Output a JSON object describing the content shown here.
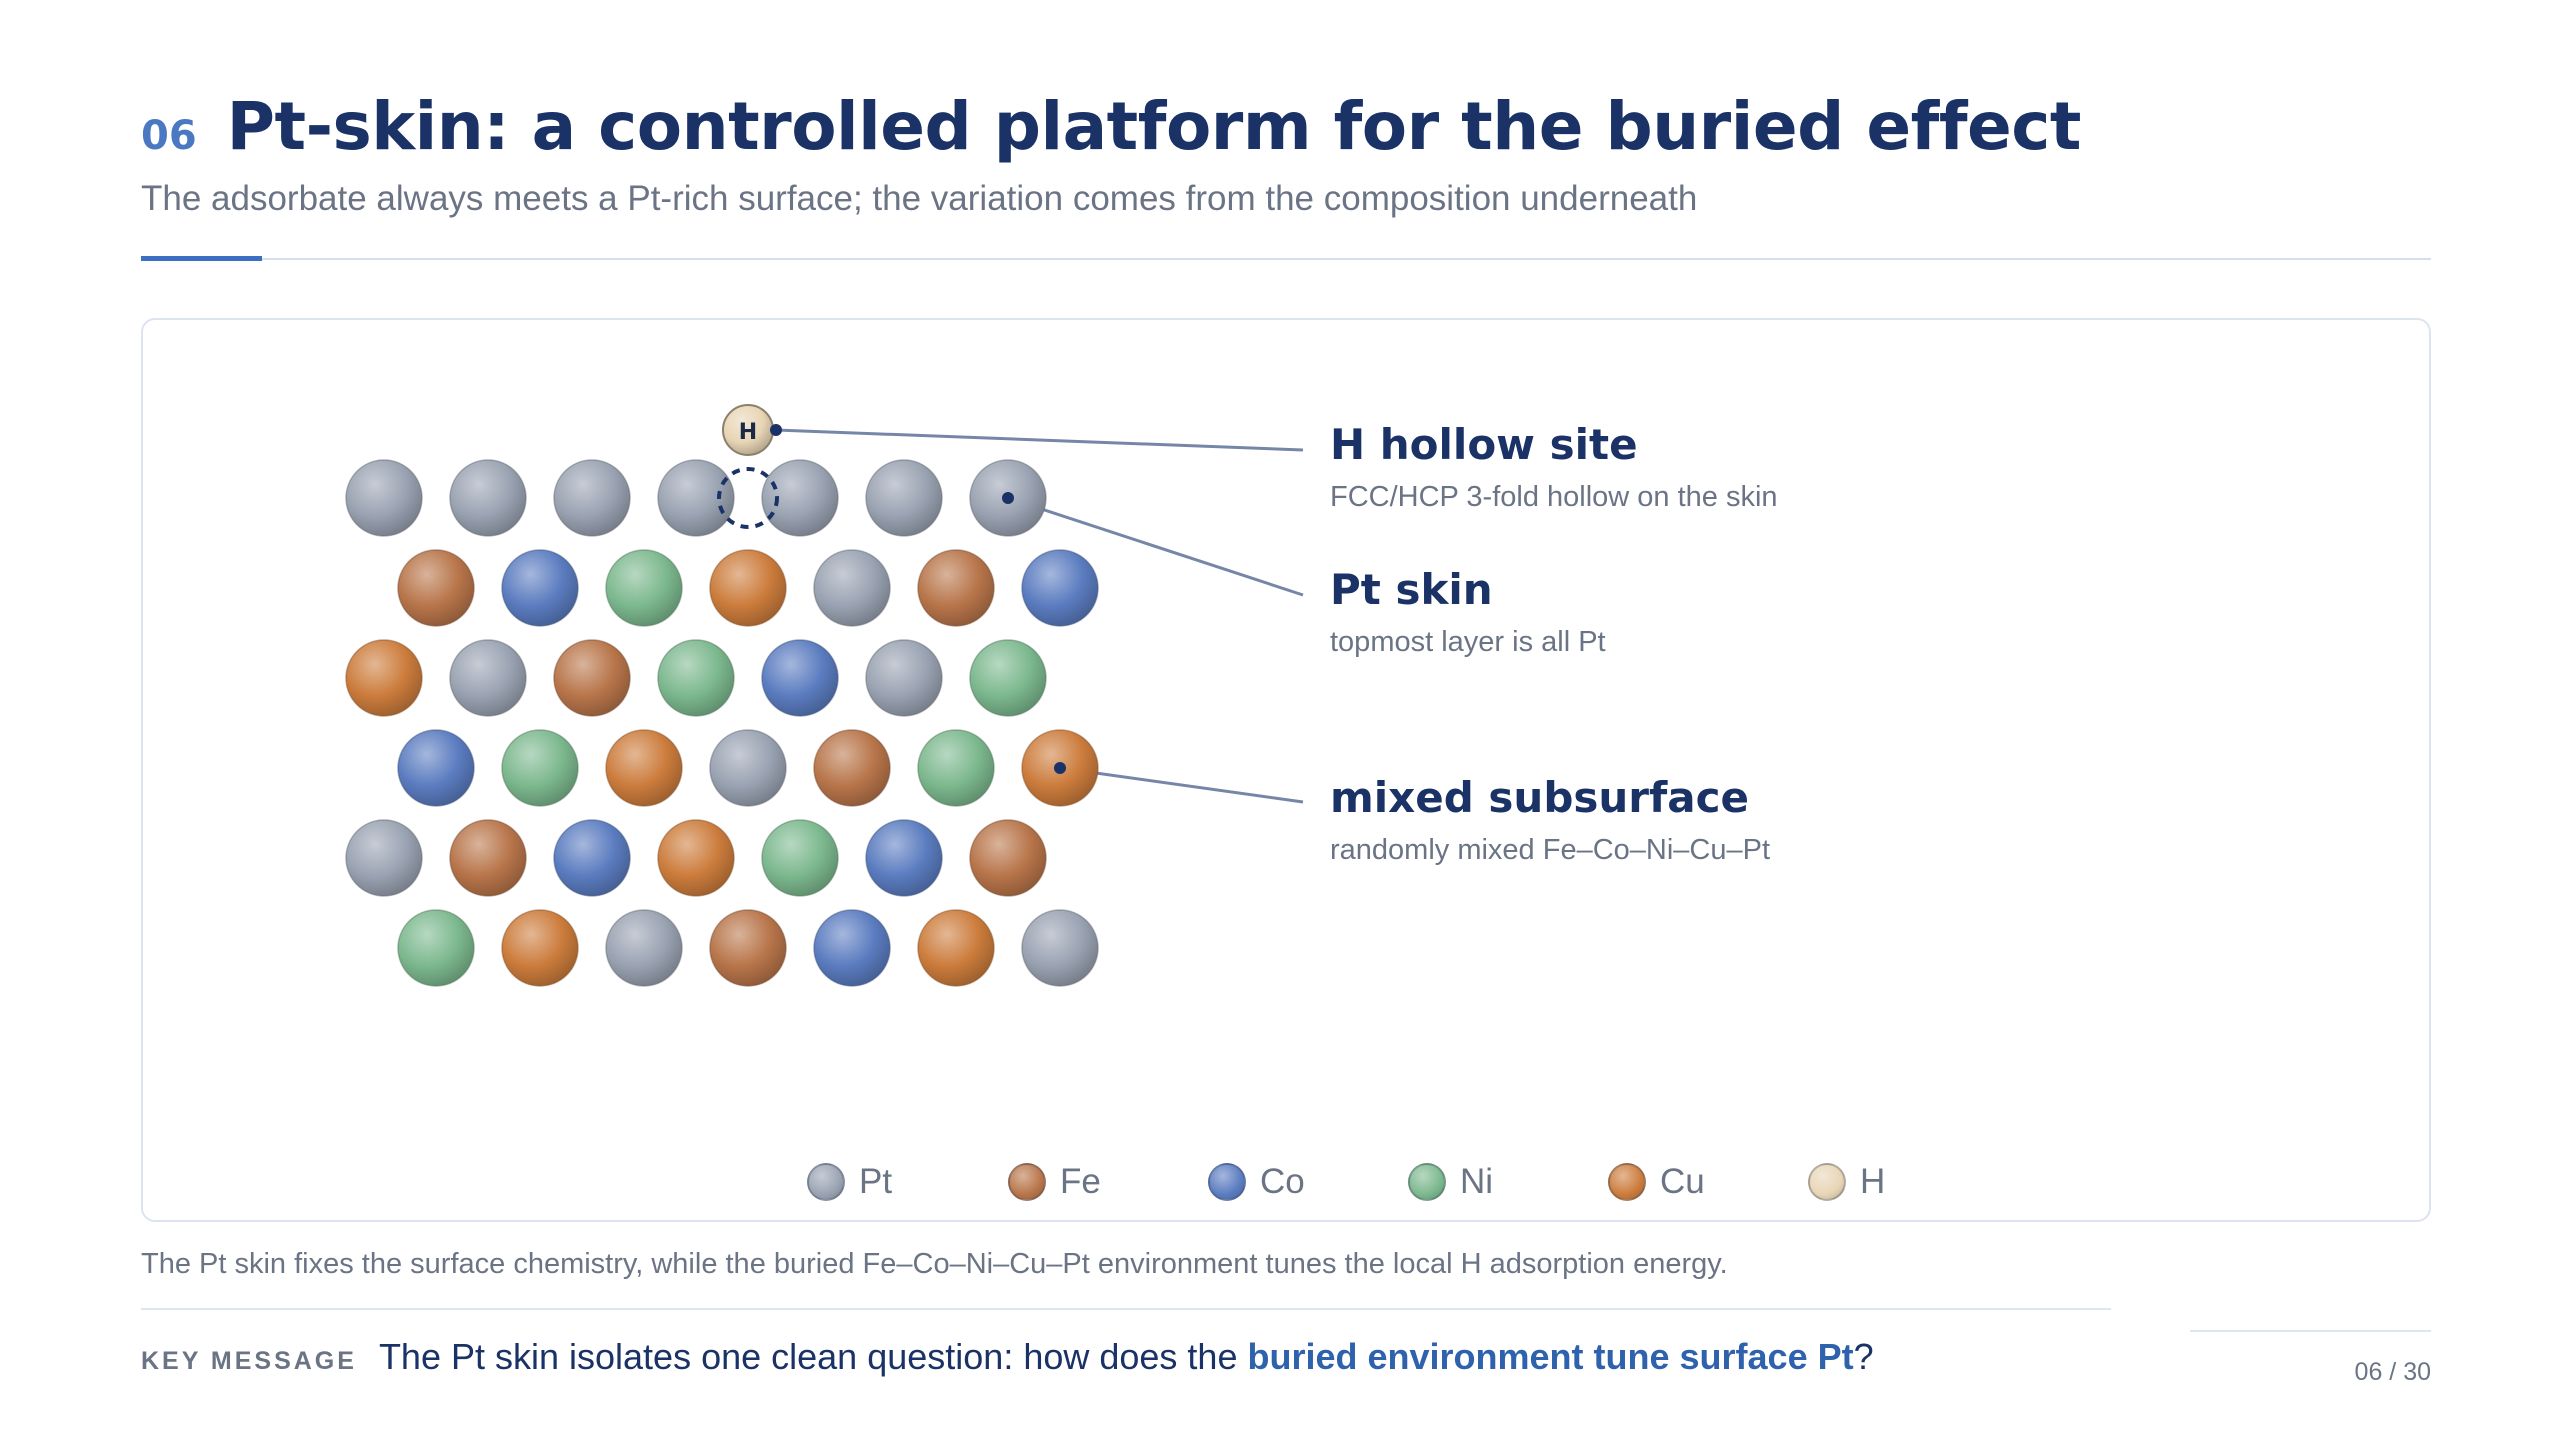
{
  "header": {
    "slide_number": "06",
    "title": "Pt-skin: a controlled platform for the buried effect",
    "subtitle": "The adsorbate always meets a Pt-rich surface; the variation comes from the composition underneath"
  },
  "colors": {
    "Pt": "#9aa3b2",
    "Fe": "#b8754a",
    "Co": "#5b7cc0",
    "Ni": "#7cb88e",
    "Cu": "#cc7c3c",
    "H": "#e8d5b5",
    "line": "#7586a8",
    "dark": "#1a3266"
  },
  "lattice": {
    "adsorbate_label": "H",
    "rows": [
      [
        "Pt",
        "Pt",
        "Pt",
        "Pt",
        "Pt",
        "Pt",
        "Pt"
      ],
      [
        "Fe",
        "Co",
        "Ni",
        "Cu",
        "Pt",
        "Fe",
        "Co"
      ],
      [
        "Cu",
        "Pt",
        "Fe",
        "Ni",
        "Co",
        "Pt",
        "Ni"
      ],
      [
        "Co",
        "Ni",
        "Cu",
        "Pt",
        "Fe",
        "Ni",
        "Cu"
      ],
      [
        "Pt",
        "Fe",
        "Co",
        "Cu",
        "Ni",
        "Co",
        "Fe"
      ],
      [
        "Ni",
        "Cu",
        "Pt",
        "Fe",
        "Co",
        "Cu",
        "Pt"
      ]
    ]
  },
  "annotations": [
    {
      "title": "H hollow site",
      "subtitle": "FCC/HCP 3-fold hollow on the skin"
    },
    {
      "title": "Pt skin",
      "subtitle": "topmost layer is all Pt"
    },
    {
      "title": "mixed subsurface",
      "subtitle": "randomly mixed Fe–Co–Ni–Cu–Pt"
    }
  ],
  "legend": [
    {
      "label": "Pt",
      "element": "Pt"
    },
    {
      "label": "Fe",
      "element": "Fe"
    },
    {
      "label": "Co",
      "element": "Co"
    },
    {
      "label": "Ni",
      "element": "Ni"
    },
    {
      "label": "Cu",
      "element": "Cu"
    },
    {
      "label": "H",
      "element": "H"
    }
  ],
  "caption": "The Pt skin fixes the surface chemistry, while the buried Fe–Co–Ni–Cu–Pt environment tunes the local H adsorption energy.",
  "key_message": {
    "label": "KEY MESSAGE",
    "text_before": "The Pt skin isolates one clean question: how does the ",
    "emphasis": "buried environment tune surface Pt",
    "text_after": "?"
  },
  "page_indicator": "06 / 30"
}
